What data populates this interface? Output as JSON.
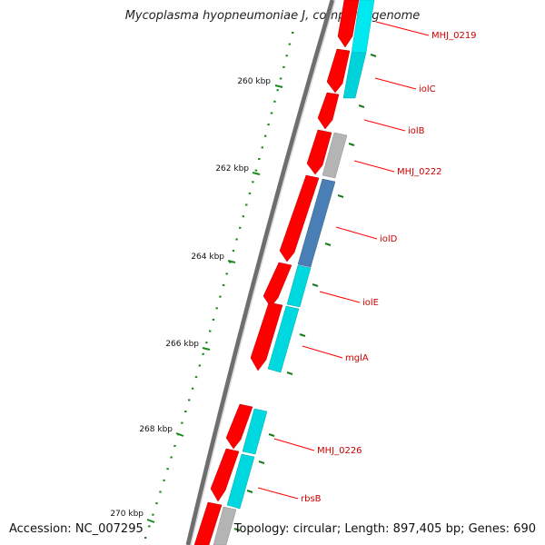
{
  "title": "Mycoplasma hyopneumoniae J, complete genome",
  "accession": "Accession: NC_007295",
  "summary": "Topology: circular; Length: 897,405 bp; Genes: 690",
  "colors": {
    "backbone": "#6e6e6e",
    "cds_forward": "#ff0000",
    "cds_cyan": "#00e0e8",
    "cds_gray": "#b4b4b4",
    "cds_blue": "#4a7fb5",
    "tick": "#1a8a1a",
    "gene_label": "#cc0000"
  },
  "ruler": [
    {
      "label": "260 kbp"
    },
    {
      "label": "262 kbp"
    },
    {
      "label": "264 kbp"
    },
    {
      "label": "266 kbp"
    },
    {
      "label": "268 kbp"
    },
    {
      "label": "270 kbp"
    }
  ],
  "gene_labels": [
    {
      "name": "MHJ_0219"
    },
    {
      "name": "iolC"
    },
    {
      "name": "iolB"
    },
    {
      "name": "MHJ_0222"
    },
    {
      "name": "iolD"
    },
    {
      "name": "iolE"
    },
    {
      "name": "mglA"
    },
    {
      "name": "MHJ_0226"
    },
    {
      "name": "rbsB"
    }
  ]
}
